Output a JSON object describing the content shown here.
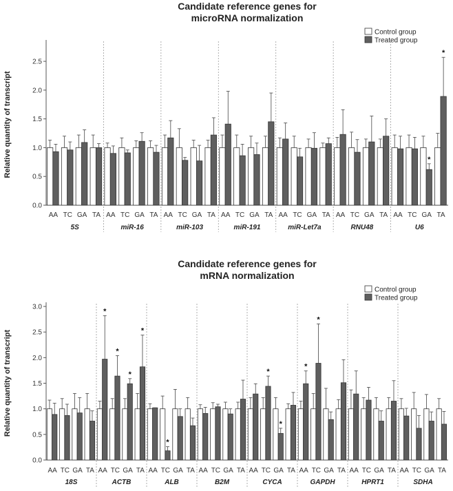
{
  "chart_data": [
    {
      "type": "bar",
      "title_lines": [
        "Candidate reference genes for",
        "microRNA normalization"
      ],
      "ylabel": "Relative quantity of transcript",
      "ylim": [
        0,
        2.8
      ],
      "yticks": [
        "0.0",
        "0.5",
        "1.0",
        "1.5",
        "2.0",
        "2.5"
      ],
      "legend": [
        "Control group",
        "Treated group"
      ],
      "subcategories": [
        "AA",
        "TC",
        "GA",
        "TA"
      ],
      "groups": [
        {
          "name": "5S",
          "control": [
            1.0,
            1.0,
            1.0,
            1.0
          ],
          "control_err": [
            0.13,
            0.2,
            0.22,
            0.22
          ],
          "treated": [
            0.93,
            0.96,
            1.09,
            1.0
          ],
          "treated_err": [
            0.13,
            0.14,
            0.22,
            0.07
          ],
          "sig": [
            false,
            false,
            false,
            false
          ]
        },
        {
          "name": "miR-16",
          "control": [
            1.0,
            1.0,
            1.0,
            1.0
          ],
          "control_err": [
            0.08,
            0.17,
            0.12,
            0.12
          ],
          "treated": [
            0.9,
            0.91,
            1.11,
            0.92
          ],
          "treated_err": [
            0.13,
            0.05,
            0.15,
            0.12
          ],
          "sig": [
            false,
            false,
            false,
            false
          ]
        },
        {
          "name": "miR-103",
          "control": [
            1.0,
            1.0,
            1.0,
            1.0
          ],
          "control_err": [
            0.22,
            0.33,
            0.13,
            0.13
          ],
          "treated": [
            1.17,
            0.78,
            0.77,
            1.22
          ],
          "treated_err": [
            0.3,
            0.05,
            0.27,
            0.3
          ],
          "sig": [
            false,
            false,
            false,
            false
          ]
        },
        {
          "name": "miR-191",
          "control": [
            1.0,
            1.0,
            1.0,
            1.0
          ],
          "control_err": [
            0.22,
            0.22,
            0.2,
            0.2
          ],
          "treated": [
            1.41,
            0.86,
            0.88,
            1.45
          ],
          "treated_err": [
            0.57,
            0.2,
            0.2,
            0.5
          ],
          "sig": [
            false,
            false,
            false,
            false
          ]
        },
        {
          "name": "miR-Let7a",
          "control": [
            1.0,
            1.0,
            1.0,
            1.0
          ],
          "control_err": [
            0.17,
            0.2,
            0.15,
            0.08
          ],
          "treated": [
            1.15,
            0.84,
            0.99,
            1.07
          ],
          "treated_err": [
            0.28,
            0.15,
            0.27,
            0.1
          ],
          "sig": [
            false,
            false,
            false,
            false
          ]
        },
        {
          "name": "RNU48",
          "control": [
            1.0,
            1.0,
            1.0,
            1.0
          ],
          "control_err": [
            0.18,
            0.27,
            0.15,
            0.15
          ],
          "treated": [
            1.23,
            0.92,
            1.1,
            1.2
          ],
          "treated_err": [
            0.43,
            0.22,
            0.45,
            0.3
          ],
          "sig": [
            false,
            false,
            false,
            false
          ]
        },
        {
          "name": "U6",
          "control": [
            1.0,
            1.0,
            1.0,
            1.0
          ],
          "control_err": [
            0.22,
            0.22,
            0.2,
            0.25
          ],
          "treated": [
            0.98,
            0.98,
            0.62,
            1.89
          ],
          "treated_err": [
            0.22,
            0.2,
            0.1,
            0.68
          ],
          "sig": [
            false,
            false,
            true,
            true
          ]
        }
      ]
    },
    {
      "type": "bar",
      "title_lines": [
        "Candidate reference genes for",
        "mRNA normalization"
      ],
      "ylabel": "Relative quantity of transcript",
      "ylim": [
        0,
        3.0
      ],
      "yticks": [
        "0.0",
        "0.5",
        "1.0",
        "1.5",
        "2.0",
        "2.5",
        "3.0"
      ],
      "legend": [
        "Control group",
        "Treated group"
      ],
      "subcategories": [
        "AA",
        "TC",
        "GA",
        "TA"
      ],
      "groups": [
        {
          "name": "18S",
          "control": [
            1.0,
            1.0,
            1.0,
            1.0
          ],
          "control_err": [
            0.17,
            0.2,
            0.3,
            0.3
          ],
          "treated": [
            0.89,
            0.87,
            0.92,
            0.76
          ],
          "treated_err": [
            0.22,
            0.22,
            0.3,
            0.2
          ],
          "sig": [
            false,
            false,
            false,
            false
          ]
        },
        {
          "name": "ACTB",
          "control": [
            1.0,
            1.0,
            1.0,
            1.0
          ],
          "control_err": [
            0.15,
            0.2,
            0.2,
            0.3
          ],
          "treated": [
            1.97,
            1.64,
            1.49,
            1.82
          ],
          "treated_err": [
            0.85,
            0.4,
            0.1,
            0.62
          ],
          "sig": [
            true,
            true,
            true,
            true
          ]
        },
        {
          "name": "ALB",
          "control": [
            1.0,
            1.0,
            1.0,
            1.0
          ],
          "control_err": [
            0.1,
            0.25,
            0.38,
            0.22
          ],
          "treated": [
            1.02,
            0.18,
            0.85,
            0.67
          ],
          "treated_err": [
            0.0,
            0.08,
            0.15,
            0.15
          ],
          "sig": [
            false,
            true,
            false,
            false
          ]
        },
        {
          "name": "B2M",
          "control": [
            1.0,
            1.0,
            1.0,
            1.0
          ],
          "control_err": [
            0.08,
            0.12,
            0.13,
            0.13
          ],
          "treated": [
            0.91,
            1.04,
            0.9,
            1.19
          ],
          "treated_err": [
            0.12,
            0.05,
            0.1,
            0.37
          ],
          "sig": [
            false,
            false,
            false,
            false
          ]
        },
        {
          "name": "CYCA",
          "control": [
            1.0,
            1.0,
            1.0,
            1.0
          ],
          "control_err": [
            0.22,
            0.22,
            0.22,
            0.1
          ],
          "treated": [
            1.29,
            1.44,
            0.52,
            1.07
          ],
          "treated_err": [
            0.2,
            0.2,
            0.1,
            0.25
          ],
          "sig": [
            false,
            true,
            true,
            false
          ]
        },
        {
          "name": "GAPDH",
          "control": [
            1.0,
            1.0,
            1.0,
            1.0
          ],
          "control_err": [
            0.15,
            0.3,
            0.4,
            0.18
          ],
          "treated": [
            1.49,
            1.89,
            0.79,
            1.51
          ],
          "treated_err": [
            0.25,
            0.77,
            0.15,
            0.45
          ],
          "sig": [
            true,
            true,
            false,
            false
          ]
        },
        {
          "name": "HPRT1",
          "control": [
            1.0,
            1.0,
            1.0,
            1.0
          ],
          "control_err": [
            0.37,
            0.22,
            0.22,
            0.22
          ],
          "treated": [
            1.29,
            1.17,
            0.76,
            1.15
          ],
          "treated_err": [
            0.45,
            0.25,
            0.2,
            0.4
          ],
          "sig": [
            false,
            false,
            false,
            false
          ]
        },
        {
          "name": "SDHA",
          "control": [
            1.0,
            1.0,
            1.0,
            1.0
          ],
          "control_err": [
            0.2,
            0.32,
            0.28,
            0.2
          ],
          "treated": [
            0.86,
            0.62,
            0.76,
            0.7
          ],
          "treated_err": [
            0.15,
            0.25,
            0.18,
            0.25
          ],
          "sig": [
            false,
            false,
            false,
            false
          ]
        }
      ]
    }
  ],
  "colors": {
    "control_fill": "#ffffff",
    "treated_fill": "#5f5f5f",
    "bar_stroke": "#333333",
    "axis": "#555555",
    "divider": "#9a9a9a"
  },
  "significance_marker": "*"
}
